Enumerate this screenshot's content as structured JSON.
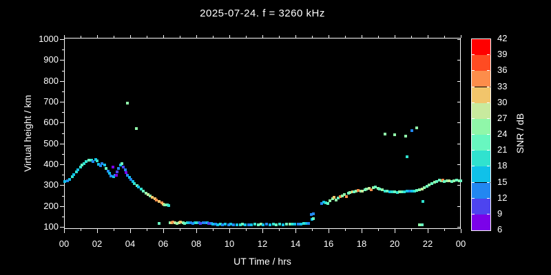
{
  "title": "2025-07-24. f = 3260 kHz",
  "axes": {
    "x": {
      "label": "UT Time / hrs",
      "tick_labels": [
        "00",
        "02",
        "04",
        "06",
        "08",
        "10",
        "12",
        "14",
        "16",
        "18",
        "20",
        "22",
        "00"
      ],
      "range_hours": [
        0,
        24
      ]
    },
    "y": {
      "label": "Virtual height / km",
      "tick_labels": [
        "100",
        "200",
        "300",
        "400",
        "500",
        "600",
        "700",
        "800",
        "900",
        "1000"
      ],
      "range_km": [
        90,
        1005
      ]
    }
  },
  "colorbar": {
    "label": "SNR / dB",
    "tick_labels": [
      "42",
      "39",
      "36",
      "33",
      "30",
      "27",
      "24",
      "21",
      "18",
      "15",
      "12",
      "9",
      "6"
    ],
    "segment_colors_low_to_high": [
      "#7B02E9",
      "#4D44EF",
      "#2287F1",
      "#10C1E9",
      "#30E2CF",
      "#68F7C0",
      "#90F7A9",
      "#C8EA9E",
      "#F2C56B",
      "#FC8D4B",
      "#FF4B22",
      "#FF0000"
    ],
    "value_min": 6,
    "value_max": 42,
    "value_step": 3
  },
  "style": {
    "background": "#000000",
    "foreground": "#FFFFFF"
  },
  "chart_data": {
    "type": "scatter",
    "title": "2025-07-24. f = 3260 kHz",
    "xlabel": "UT Time / hrs",
    "ylabel": "Virtual height / km",
    "zlabel": "SNR / dB",
    "xlim": [
      0,
      24
    ],
    "ylim": [
      90,
      1005
    ],
    "zlim": [
      6,
      42
    ],
    "grid": false,
    "legend": "colorbar-right",
    "points_t_h_snr": [
      [
        0.05,
        316,
        16
      ],
      [
        0.2,
        320,
        13
      ],
      [
        0.35,
        328,
        16
      ],
      [
        0.5,
        340,
        19
      ],
      [
        0.6,
        352,
        16
      ],
      [
        0.75,
        364,
        19
      ],
      [
        0.85,
        374,
        16
      ],
      [
        1.0,
        386,
        19
      ],
      [
        1.1,
        396,
        22
      ],
      [
        1.2,
        404,
        19
      ],
      [
        1.35,
        414,
        19
      ],
      [
        1.5,
        421,
        22
      ],
      [
        1.65,
        419,
        19
      ],
      [
        1.75,
        412,
        13
      ],
      [
        1.9,
        424,
        16
      ],
      [
        2.0,
        418,
        19
      ],
      [
        2.1,
        400,
        16
      ],
      [
        2.2,
        393,
        13
      ],
      [
        2.3,
        404,
        13
      ],
      [
        2.45,
        397,
        16
      ],
      [
        2.55,
        380,
        22
      ],
      [
        2.65,
        368,
        13
      ],
      [
        2.75,
        356,
        16
      ],
      [
        2.85,
        344,
        13
      ],
      [
        2.95,
        386,
        8
      ],
      [
        3.0,
        340,
        16
      ],
      [
        3.1,
        348,
        13
      ],
      [
        3.15,
        348,
        8
      ],
      [
        3.2,
        364,
        10
      ],
      [
        3.3,
        380,
        13
      ],
      [
        3.4,
        398,
        16
      ],
      [
        3.5,
        404,
        22
      ],
      [
        3.6,
        388,
        10
      ],
      [
        3.7,
        372,
        13
      ],
      [
        3.75,
        360,
        8
      ],
      [
        3.85,
        348,
        13
      ],
      [
        3.95,
        338,
        16
      ],
      [
        4.05,
        328,
        13
      ],
      [
        4.15,
        318,
        16
      ],
      [
        4.25,
        308,
        19
      ],
      [
        4.4,
        297,
        22
      ],
      [
        4.5,
        290,
        16
      ],
      [
        4.65,
        281,
        19
      ],
      [
        4.8,
        272,
        22
      ],
      [
        4.95,
        263,
        25
      ],
      [
        5.1,
        255,
        28
      ],
      [
        5.2,
        250,
        25
      ],
      [
        5.35,
        242,
        31
      ],
      [
        5.5,
        234,
        31
      ],
      [
        5.6,
        227,
        34
      ],
      [
        5.75,
        221,
        31
      ],
      [
        5.9,
        214,
        34
      ],
      [
        6.0,
        210,
        31
      ],
      [
        6.1,
        207,
        25
      ],
      [
        6.25,
        204,
        22
      ],
      [
        6.35,
        202,
        19
      ],
      [
        3.83,
        695,
        25
      ],
      [
        4.37,
        571,
        25
      ],
      [
        5.75,
        117,
        22
      ],
      [
        6.4,
        119,
        25
      ],
      [
        6.5,
        121,
        31
      ],
      [
        6.6,
        122,
        34
      ],
      [
        6.7,
        120,
        28
      ],
      [
        6.85,
        118,
        25
      ],
      [
        6.95,
        120,
        28
      ],
      [
        7.05,
        122,
        31
      ],
      [
        7.2,
        120,
        25
      ],
      [
        7.3,
        118,
        22
      ],
      [
        7.45,
        120,
        19
      ],
      [
        7.55,
        121,
        16
      ],
      [
        7.65,
        120,
        13
      ],
      [
        7.8,
        118,
        13
      ],
      [
        7.9,
        120,
        16
      ],
      [
        8.0,
        121,
        19
      ],
      [
        8.15,
        120,
        13
      ],
      [
        8.25,
        118,
        10
      ],
      [
        8.4,
        119,
        13
      ],
      [
        8.5,
        121,
        13
      ],
      [
        8.65,
        120,
        16
      ],
      [
        8.75,
        118,
        11
      ],
      [
        8.9,
        116,
        13
      ],
      [
        9.0,
        114,
        16
      ],
      [
        9.15,
        112,
        13
      ],
      [
        9.3,
        111,
        16
      ],
      [
        9.45,
        112,
        19
      ],
      [
        9.6,
        110,
        13
      ],
      [
        9.75,
        112,
        16
      ],
      [
        9.95,
        110,
        13
      ],
      [
        10.1,
        112,
        16
      ],
      [
        10.25,
        110,
        13
      ],
      [
        10.45,
        111,
        16
      ],
      [
        10.65,
        110,
        19
      ],
      [
        10.8,
        112,
        22
      ],
      [
        10.95,
        110,
        16
      ],
      [
        11.15,
        111,
        13
      ],
      [
        11.35,
        110,
        16
      ],
      [
        11.55,
        112,
        19
      ],
      [
        11.75,
        110,
        22
      ],
      [
        11.9,
        112,
        25
      ],
      [
        12.05,
        110,
        16
      ],
      [
        12.25,
        112,
        13
      ],
      [
        12.45,
        110,
        16
      ],
      [
        12.65,
        112,
        19
      ],
      [
        12.85,
        110,
        22
      ],
      [
        13.05,
        112,
        19
      ],
      [
        13.25,
        110,
        16
      ],
      [
        13.45,
        112,
        22
      ],
      [
        13.65,
        114,
        25
      ],
      [
        13.8,
        112,
        19
      ],
      [
        13.95,
        113,
        16
      ],
      [
        14.15,
        114,
        13
      ],
      [
        14.35,
        113,
        16
      ],
      [
        14.5,
        115,
        19
      ],
      [
        14.65,
        116,
        16
      ],
      [
        14.8,
        118,
        13
      ],
      [
        15.0,
        136,
        16
      ],
      [
        15.1,
        139,
        22
      ],
      [
        14.95,
        160,
        13
      ],
      [
        15.1,
        162,
        13
      ],
      [
        15.6,
        212,
        13
      ],
      [
        15.7,
        220,
        16
      ],
      [
        15.85,
        217,
        19
      ],
      [
        15.95,
        212,
        22
      ],
      [
        16.1,
        226,
        25
      ],
      [
        16.25,
        234,
        25
      ],
      [
        16.35,
        241,
        31
      ],
      [
        16.45,
        230,
        25
      ],
      [
        16.6,
        237,
        22
      ],
      [
        16.7,
        244,
        34
      ],
      [
        16.85,
        249,
        25
      ],
      [
        16.95,
        255,
        25
      ],
      [
        17.1,
        246,
        34
      ],
      [
        17.2,
        260,
        22
      ],
      [
        17.3,
        265,
        25
      ],
      [
        17.45,
        267,
        31
      ],
      [
        17.55,
        269,
        22
      ],
      [
        17.65,
        271,
        25
      ],
      [
        17.8,
        274,
        34
      ],
      [
        17.95,
        270,
        25
      ],
      [
        18.05,
        273,
        28
      ],
      [
        18.2,
        277,
        22
      ],
      [
        18.3,
        281,
        25
      ],
      [
        18.45,
        284,
        28
      ],
      [
        18.6,
        277,
        34
      ],
      [
        18.7,
        288,
        25
      ],
      [
        18.85,
        290,
        22
      ],
      [
        19.0,
        286,
        25
      ],
      [
        19.1,
        282,
        22
      ],
      [
        19.25,
        277,
        25
      ],
      [
        19.4,
        273,
        19
      ],
      [
        19.55,
        270,
        22
      ],
      [
        19.7,
        268,
        16
      ],
      [
        19.85,
        269,
        19
      ],
      [
        20.0,
        267,
        22
      ],
      [
        20.15,
        266,
        19
      ],
      [
        20.3,
        268,
        25
      ],
      [
        20.45,
        269,
        22
      ],
      [
        20.6,
        268,
        19
      ],
      [
        20.75,
        270,
        16
      ],
      [
        20.9,
        271,
        13
      ],
      [
        21.05,
        270,
        16
      ],
      [
        21.2,
        272,
        19
      ],
      [
        21.35,
        275,
        22
      ],
      [
        21.5,
        278,
        25
      ],
      [
        21.65,
        282,
        28
      ],
      [
        21.8,
        288,
        25
      ],
      [
        21.95,
        294,
        22
      ],
      [
        22.1,
        301,
        25
      ],
      [
        22.25,
        307,
        22
      ],
      [
        22.4,
        313,
        25
      ],
      [
        22.55,
        319,
        22
      ],
      [
        22.7,
        324,
        22
      ],
      [
        22.85,
        322,
        25
      ],
      [
        22.9,
        324,
        34
      ],
      [
        23.0,
        318,
        22
      ],
      [
        23.15,
        320,
        25
      ],
      [
        23.3,
        322,
        28
      ],
      [
        23.45,
        318,
        22
      ],
      [
        23.6,
        320,
        25
      ],
      [
        23.75,
        324,
        22
      ],
      [
        23.9,
        322,
        25
      ],
      [
        24.0,
        320,
        22
      ],
      [
        19.4,
        545,
        25
      ],
      [
        20.0,
        542,
        25
      ],
      [
        20.65,
        535,
        25
      ],
      [
        21.05,
        562,
        13
      ],
      [
        21.35,
        575,
        25
      ],
      [
        20.75,
        436,
        19
      ],
      [
        21.7,
        222,
        19
      ],
      [
        21.5,
        110,
        25
      ],
      [
        21.65,
        110,
        22
      ]
    ]
  }
}
